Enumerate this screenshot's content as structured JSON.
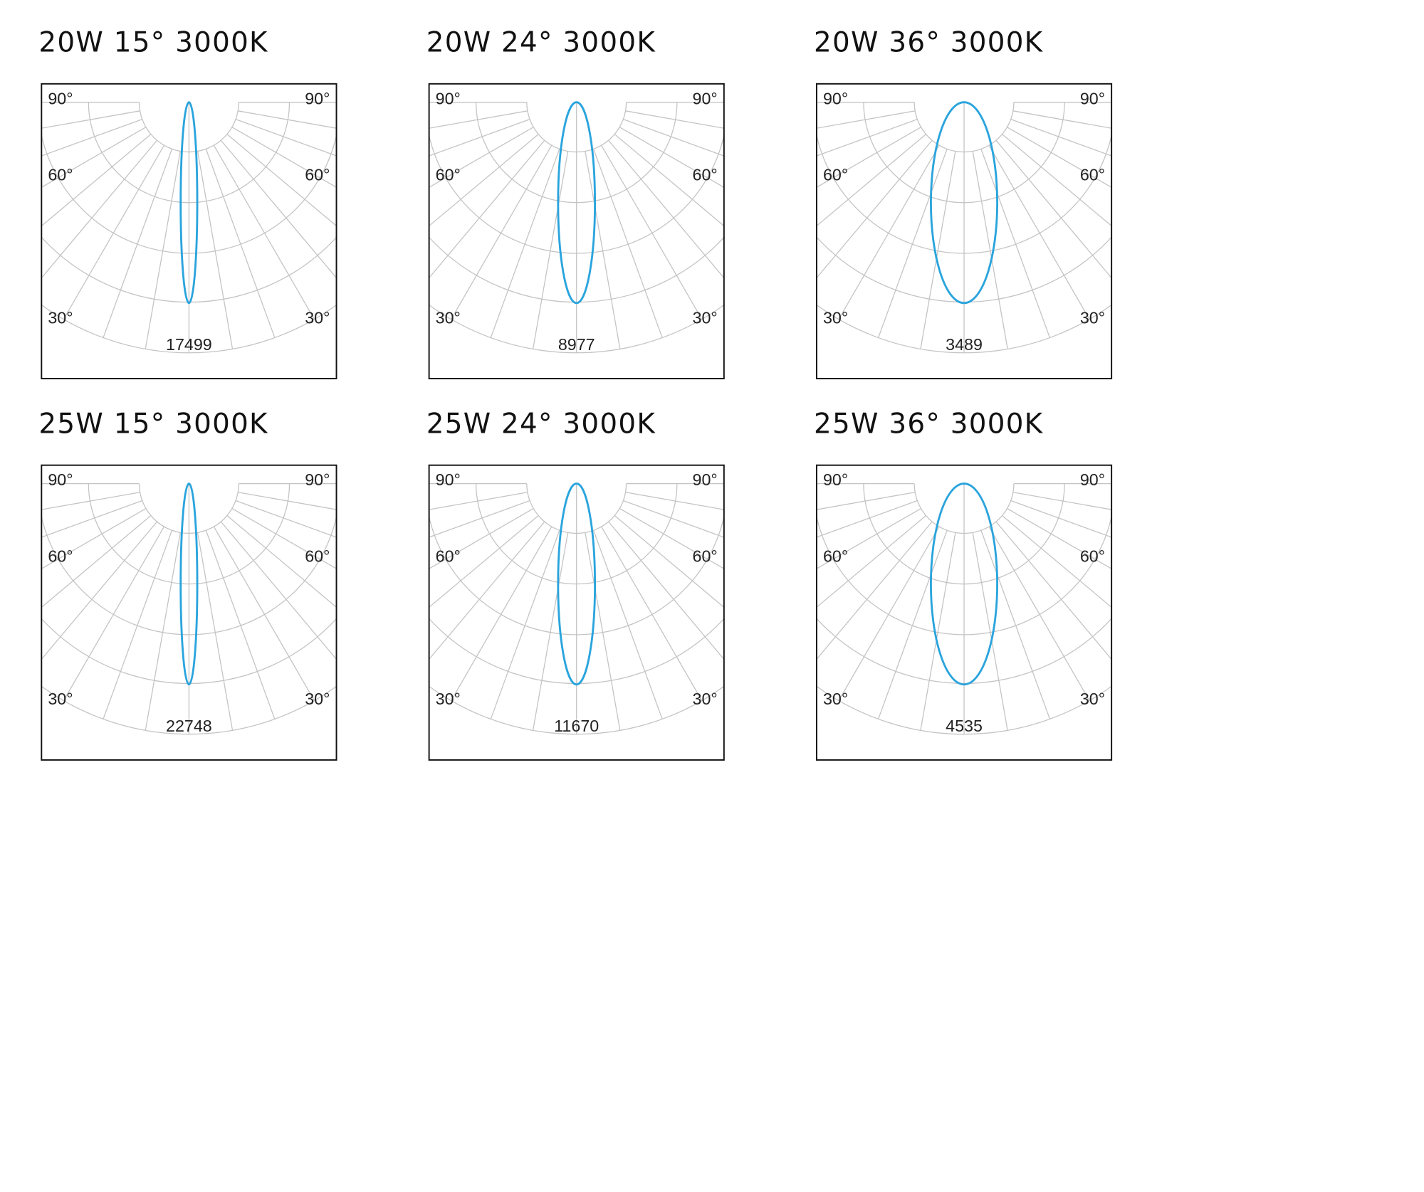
{
  "panels": [
    {
      "title": "20W 15° 3000K",
      "angles": [
        "90°",
        "60°",
        "30°"
      ],
      "peak": 17499
    },
    {
      "title": "20W 24° 3000K",
      "angles": [
        "90°",
        "60°",
        "30°"
      ],
      "peak": 8977
    },
    {
      "title": "20W 36° 3000K",
      "angles": [
        "90°",
        "60°",
        "30°"
      ],
      "peak": 3489
    },
    {
      "title": "25W 15° 3000K",
      "angles": [
        "90°",
        "60°",
        "30°"
      ],
      "peak": 22748
    },
    {
      "title": "25W 24° 3000K",
      "angles": [
        "90°",
        "60°",
        "30°"
      ],
      "peak": 11670
    },
    {
      "title": "25W 36° 3000K",
      "angles": [
        "90°",
        "60°",
        "30°"
      ],
      "peak": 4535
    }
  ]
}
